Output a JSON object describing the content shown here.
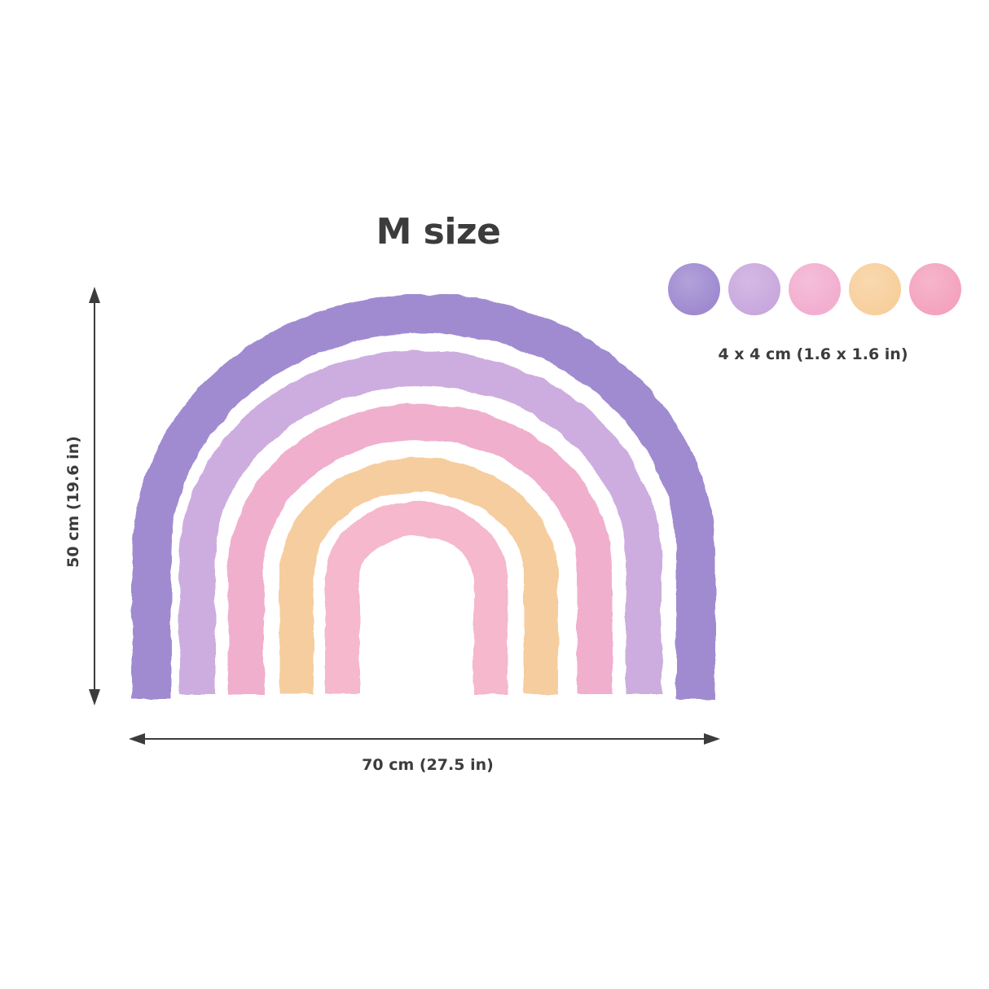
{
  "title": "M size",
  "dimensions": {
    "width_label": "70 cm (27.5 in)",
    "height_label": "50 cm (19.6 in)"
  },
  "dots": {
    "label": "4 x 4 cm (1.6 x 1.6 in)",
    "colors": [
      "#9f8ad0",
      "#c9a8de",
      "#f2aed0",
      "#f7cf9c",
      "#f4a3bf"
    ]
  },
  "rainbow": {
    "bands": [
      {
        "name": "outer-purple",
        "color": "#9b85cf"
      },
      {
        "name": "lilac",
        "color": "#c8a4dc"
      },
      {
        "name": "pink",
        "color": "#eea6c8"
      },
      {
        "name": "peach",
        "color": "#f5c894"
      },
      {
        "name": "inner-pink",
        "color": "#f3abc3"
      }
    ]
  }
}
